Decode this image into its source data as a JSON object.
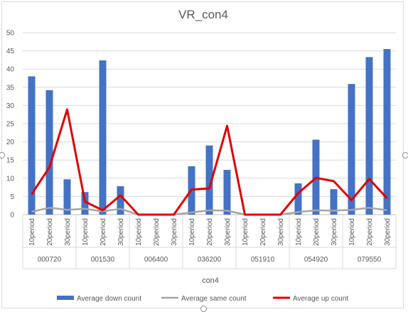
{
  "chart_data": {
    "type": "bar",
    "title": "VR_con4",
    "xlabel": "con4",
    "ylabel": "",
    "ylim": [
      0,
      50
    ],
    "yticks": [
      0,
      5,
      10,
      15,
      20,
      25,
      30,
      35,
      40,
      45,
      50
    ],
    "grid": true,
    "legend_position": "bottom",
    "groups": [
      "000720",
      "001530",
      "006400",
      "036200",
      "051910",
      "054920",
      "079550"
    ],
    "periods": [
      "10period",
      "20period",
      "30period"
    ],
    "series": [
      {
        "name": "Average down count",
        "kind": "bar",
        "color": "#4472c4",
        "values": [
          38,
          34.2,
          9.7,
          6.2,
          42.4,
          7.8,
          0,
          0,
          0,
          13.3,
          19,
          12.3,
          0,
          0,
          0,
          8.6,
          20.6,
          7,
          35.9,
          43.3,
          45.5
        ]
      },
      {
        "name": "Average same count",
        "kind": "line",
        "color": "#a5a5a5",
        "values": [
          0.8,
          1.9,
          1.3,
          1.6,
          0.9,
          1.6,
          0,
          0,
          0,
          0.6,
          1.2,
          1.1,
          0,
          0,
          0,
          0.7,
          1.2,
          1.1,
          1.3,
          1.9,
          1.2
        ]
      },
      {
        "name": "Average up count",
        "kind": "line",
        "color": "#e00000",
        "values": [
          5.6,
          13,
          28.9,
          3.6,
          1.2,
          5.3,
          0,
          0,
          0,
          6.9,
          7.2,
          24.4,
          0,
          0,
          0,
          5.9,
          10.1,
          9.2,
          4,
          9.8,
          4.5
        ]
      }
    ]
  }
}
